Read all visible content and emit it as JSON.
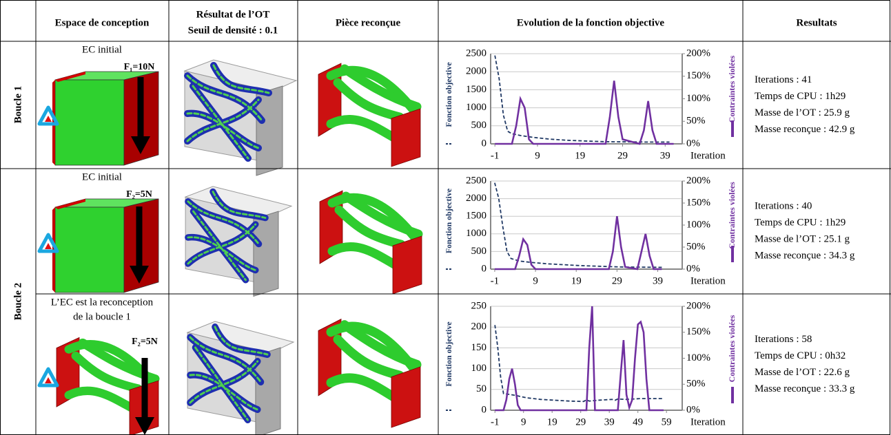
{
  "table": {
    "headers": [
      "Espace de conception",
      "Résultat de l’OT",
      "Pièce reconçue",
      "Evolution  de la fonction objective",
      "Resultats"
    ],
    "header_subtitle": "Seuil de densité : 0.1",
    "groups": [
      "Boucle 1",
      "Boucle 2"
    ],
    "rows": [
      {
        "design_label": [
          "EC initial"
        ],
        "force": "F₁=10N",
        "chart": {
          "type": "line",
          "y_label": "Fonction objective",
          "y2_label": "Contraintes violées",
          "x_label": "Iteration",
          "xlim": [
            -2,
            43
          ],
          "xticks": [
            -1,
            9,
            19,
            29,
            39
          ],
          "ylim": [
            0,
            2500
          ],
          "yticks": [
            0,
            500,
            1000,
            1500,
            2000,
            2500
          ],
          "y2lim": [
            0,
            200
          ],
          "y2ticks": [
            {
              "value": 0,
              "label": "0%"
            },
            {
              "value": 50,
              "label": "50%"
            },
            {
              "value": 100,
              "label": "100%"
            },
            {
              "value": 150,
              "label": "150%"
            },
            {
              "value": 200,
              "label": "200%"
            }
          ],
          "grid": true,
          "series": [
            {
              "color": "#1f3864",
              "dashed": true,
              "x": [
                -1,
                0,
                1,
                2,
                3,
                5,
                8,
                12,
                16,
                20,
                25,
                30,
                35,
                40
              ],
              "values": [
                2450,
                1800,
                800,
                350,
                280,
                230,
                180,
                130,
                100,
                80,
                60,
                55,
                50,
                50
              ]
            },
            {
              "color": "#7030a0",
              "axis": "y2",
              "x": [
                -1,
                3,
                4,
                5,
                6,
                7,
                8,
                25,
                26,
                27,
                28,
                29,
                33,
                34,
                35,
                36,
                37,
                41
              ],
              "values": [
                0,
                0,
                40,
                100,
                80,
                10,
                0,
                0,
                60,
                140,
                60,
                10,
                0,
                30,
                95,
                30,
                0,
                0
              ]
            }
          ]
        },
        "results": [
          "Iterations : 41",
          "Temps de CPU : 1h29",
          "Masse de l’OT : 25.9 g",
          "Masse reconçue : 42.9 g"
        ]
      },
      {
        "design_label": [
          "EC initial"
        ],
        "force": "F₂=5N",
        "chart": {
          "type": "line",
          "y_label": "Fonction objective",
          "y2_label": "Contraintes violées",
          "x_label": "Iteration",
          "xlim": [
            -2,
            45
          ],
          "xticks": [
            -1,
            9,
            19,
            29,
            39
          ],
          "ylim": [
            0,
            2500
          ],
          "yticks": [
            0,
            500,
            1000,
            1500,
            2000,
            2500
          ],
          "y2lim": [
            0,
            200
          ],
          "y2ticks": [
            {
              "value": 0,
              "label": "0%"
            },
            {
              "value": 50,
              "label": "50%"
            },
            {
              "value": 100,
              "label": "100%"
            },
            {
              "value": 150,
              "label": "150%"
            },
            {
              "value": 200,
              "label": "200%"
            }
          ],
          "grid": true,
          "series": [
            {
              "color": "#1f3864",
              "dashed": true,
              "x": [
                -1,
                0,
                1,
                2,
                3,
                5,
                8,
                12,
                20,
                30,
                40
              ],
              "values": [
                2450,
                2000,
                1200,
                500,
                300,
                230,
                190,
                150,
                100,
                60,
                50
              ]
            },
            {
              "color": "#7030a0",
              "axis": "y2",
              "x": [
                -1,
                4,
                5,
                6,
                7,
                8,
                9,
                27,
                28,
                29,
                30,
                31,
                34,
                35,
                36,
                37,
                38,
                40
              ],
              "values": [
                0,
                0,
                30,
                68,
                55,
                10,
                0,
                0,
                40,
                120,
                50,
                5,
                0,
                40,
                80,
                30,
                0,
                0
              ]
            }
          ]
        },
        "results": [
          "Iterations : 40",
          "Temps de CPU : 1h29",
          "Masse de l’OT : 25.1 g",
          "Masse reconçue : 34.3 g"
        ]
      },
      {
        "design_label": [
          "L’EC est la reconception",
          "de la boucle 1"
        ],
        "force": "F₂=5N",
        "chart": {
          "type": "line",
          "y_label": "Fonction objective",
          "y2_label": "Contraintes violées",
          "x_label": "Iteration",
          "xlim": [
            -2.5,
            64.5
          ],
          "xticks": [
            -1,
            9,
            19,
            29,
            39,
            49,
            59
          ],
          "ylim": [
            0,
            250
          ],
          "yticks": [
            0,
            50,
            100,
            150,
            200,
            250
          ],
          "y2lim": [
            0,
            200
          ],
          "y2ticks": [
            {
              "value": 0,
              "label": "0%"
            },
            {
              "value": 50,
              "label": "50%"
            },
            {
              "value": 100,
              "label": "100%"
            },
            {
              "value": 150,
              "label": "150%"
            },
            {
              "value": 200,
              "label": "200%"
            }
          ],
          "grid": true,
          "series": [
            {
              "color": "#1f3864",
              "dashed": true,
              "x": [
                -1,
                0,
                1,
                2,
                4,
                6,
                10,
                15,
                20,
                25,
                30,
                31,
                32,
                35,
                40,
                41,
                42,
                45,
                50,
                55,
                58
              ],
              "values": [
                205,
                150,
                80,
                40,
                38,
                36,
                30,
                26,
                24,
                22,
                21,
                25,
                22,
                24,
                26,
                24,
                27,
                26,
                28,
                28,
                28
              ]
            },
            {
              "color": "#7030a0",
              "axis": "y2",
              "x": [
                -1,
                2,
                3,
                4,
                5,
                6,
                7,
                8,
                31,
                32,
                33,
                34,
                42,
                43,
                44,
                45,
                46,
                47,
                48,
                49,
                50,
                51,
                52,
                53,
                56,
                58
              ],
              "values": [
                0,
                0,
                20,
                60,
                80,
                50,
                10,
                0,
                0,
                120,
                200,
                0,
                0,
                70,
                135,
                30,
                5,
                20,
                100,
                165,
                170,
                150,
                60,
                0,
                0,
                0
              ]
            }
          ]
        },
        "results": [
          "Iterations : 58",
          "Temps de CPU : 0h32",
          "Masse de l’OT : 22.6 g",
          "Masse reconçue : 33.3 g"
        ]
      }
    ]
  }
}
